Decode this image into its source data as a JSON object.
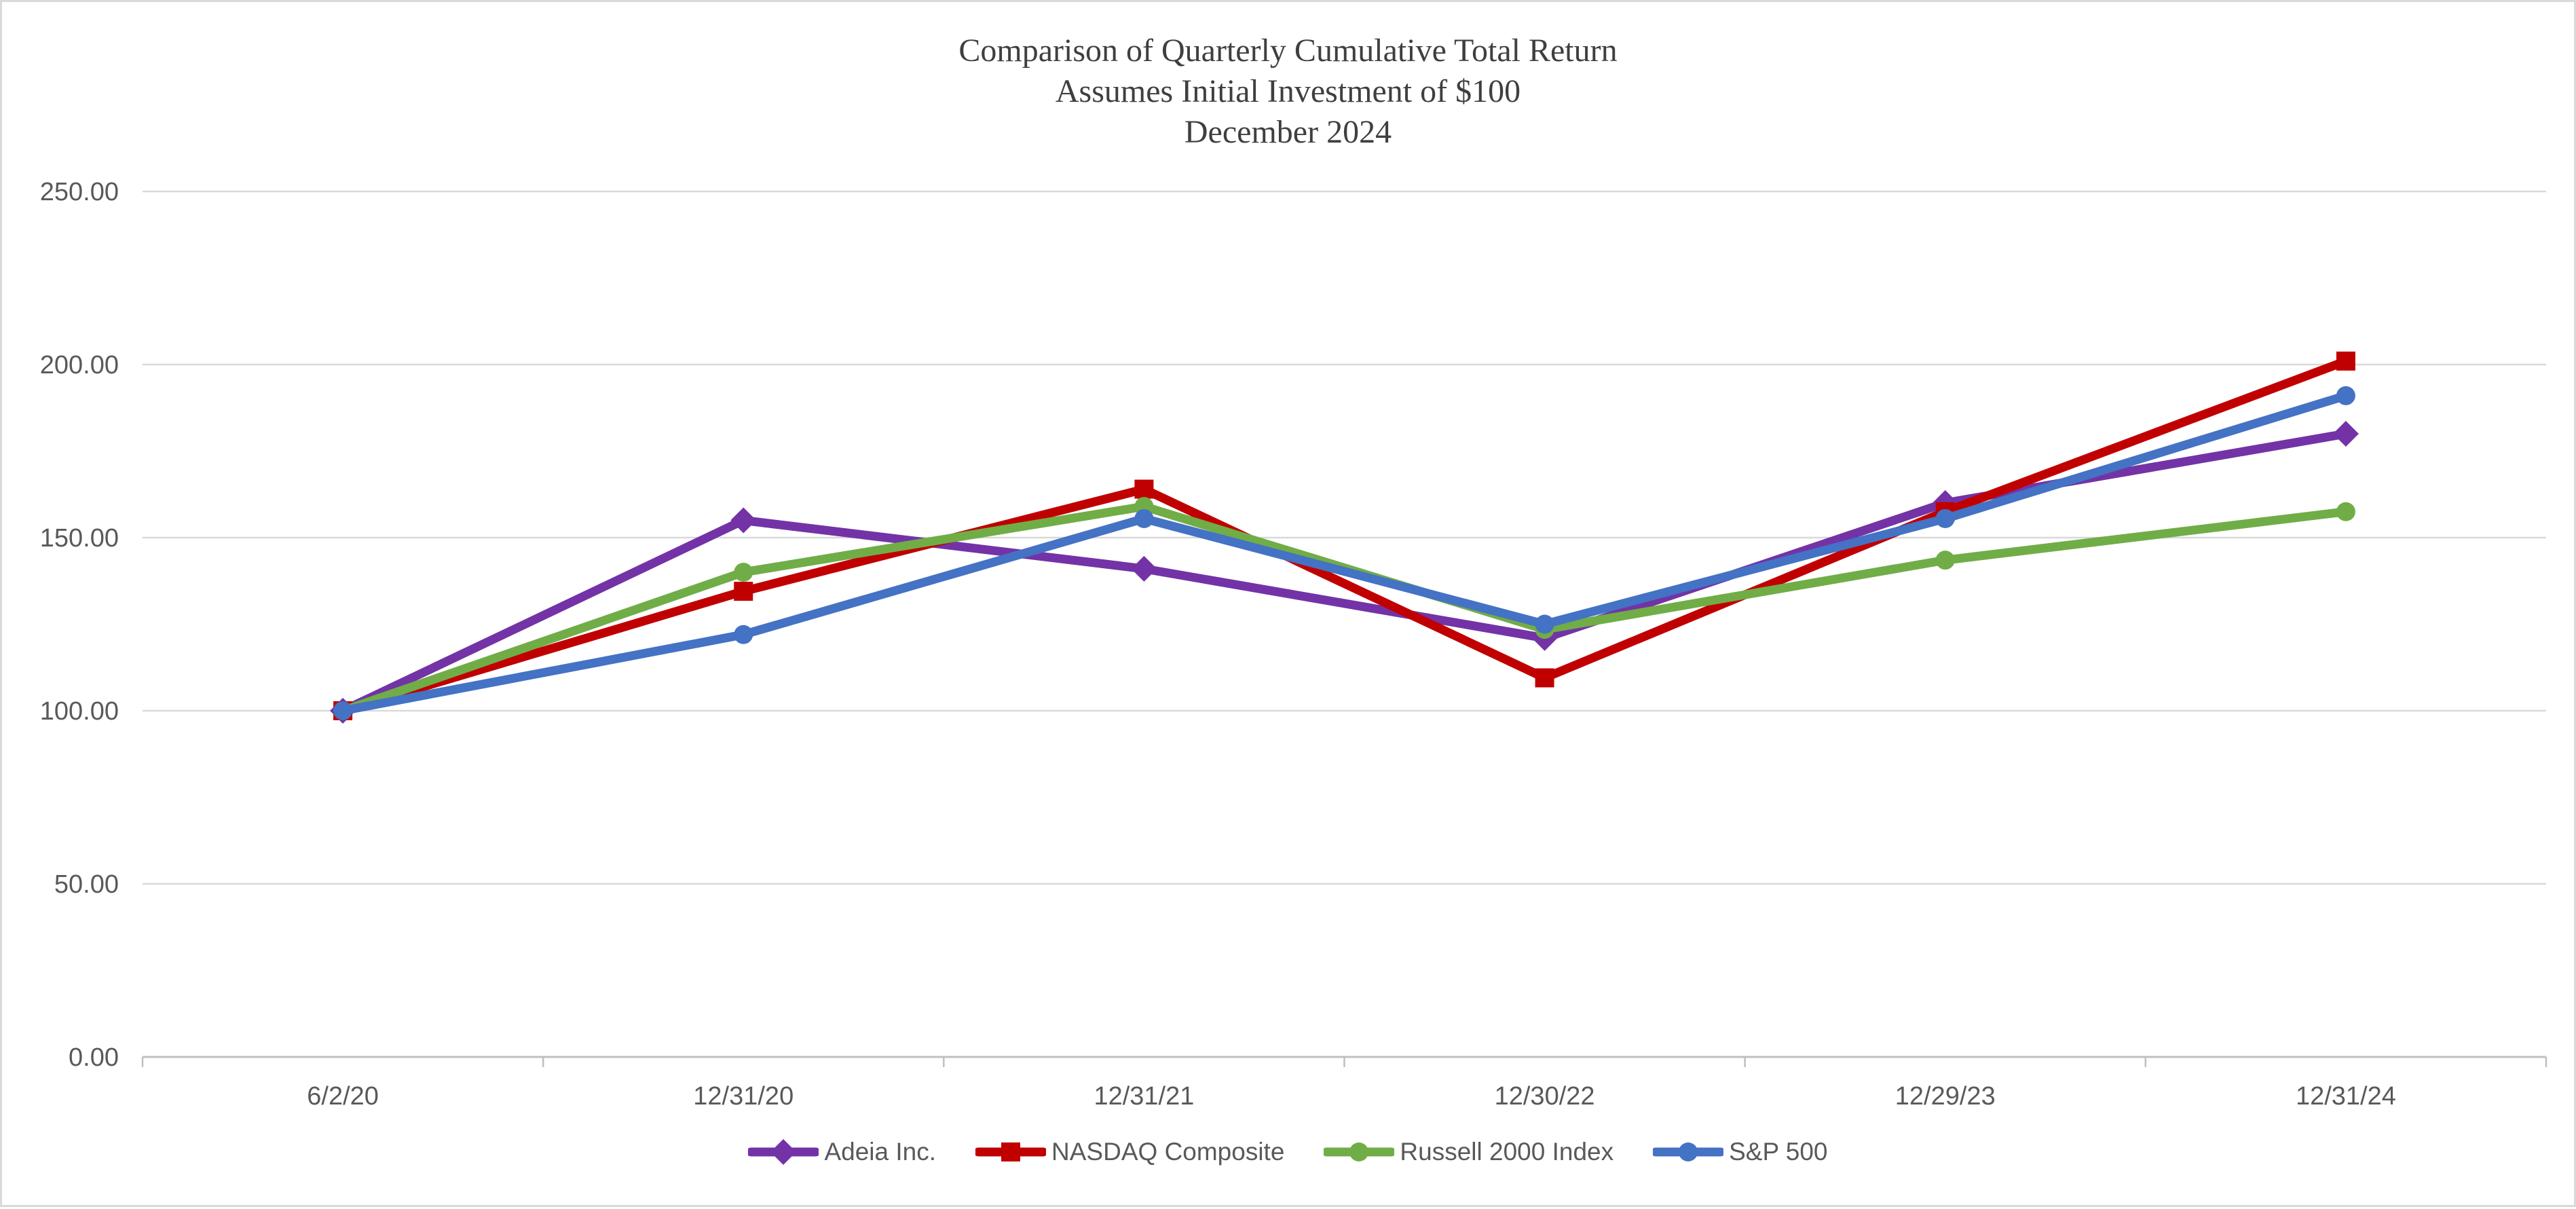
{
  "title": {
    "line1": "Comparison of Quarterly Cumulative Total Return",
    "line2": "Assumes Initial Investment of $100",
    "line3": "December 2024"
  },
  "chart_data": {
    "type": "line",
    "categories": [
      "6/2/20",
      "12/31/20",
      "12/31/21",
      "12/30/22",
      "12/29/23",
      "12/31/24"
    ],
    "series": [
      {
        "name": "Adeia Inc.",
        "marker": "diamond",
        "color": "#7333A7",
        "values": [
          100,
          155,
          141,
          121,
          160,
          180
        ]
      },
      {
        "name": "NASDAQ Composite",
        "marker": "square",
        "color": "#C00000",
        "values": [
          100,
          134.5,
          164,
          109.5,
          157.5,
          201
        ]
      },
      {
        "name": "Russell 2000 Index",
        "marker": "circle",
        "color": "#70AD47",
        "values": [
          100,
          140,
          159,
          123.5,
          143.5,
          157.5
        ]
      },
      {
        "name": "S&P 500",
        "marker": "circle",
        "color": "#4472C4",
        "values": [
          100,
          122,
          155.5,
          125,
          155.5,
          191
        ]
      }
    ],
    "ylim": [
      0,
      250
    ],
    "ytick_step": 50,
    "ytick_labels": [
      "0.00",
      "50.00",
      "100.00",
      "150.00",
      "200.00",
      "250.00"
    ],
    "grid": "horizontal",
    "legend_position": "bottom",
    "styles": {
      "axis_text_color": "#595959",
      "gridline_color": "#d9d9d9",
      "axis_line_color": "#bfbfbf",
      "title_color": "#3f3f3f",
      "background": "#ffffff"
    }
  }
}
